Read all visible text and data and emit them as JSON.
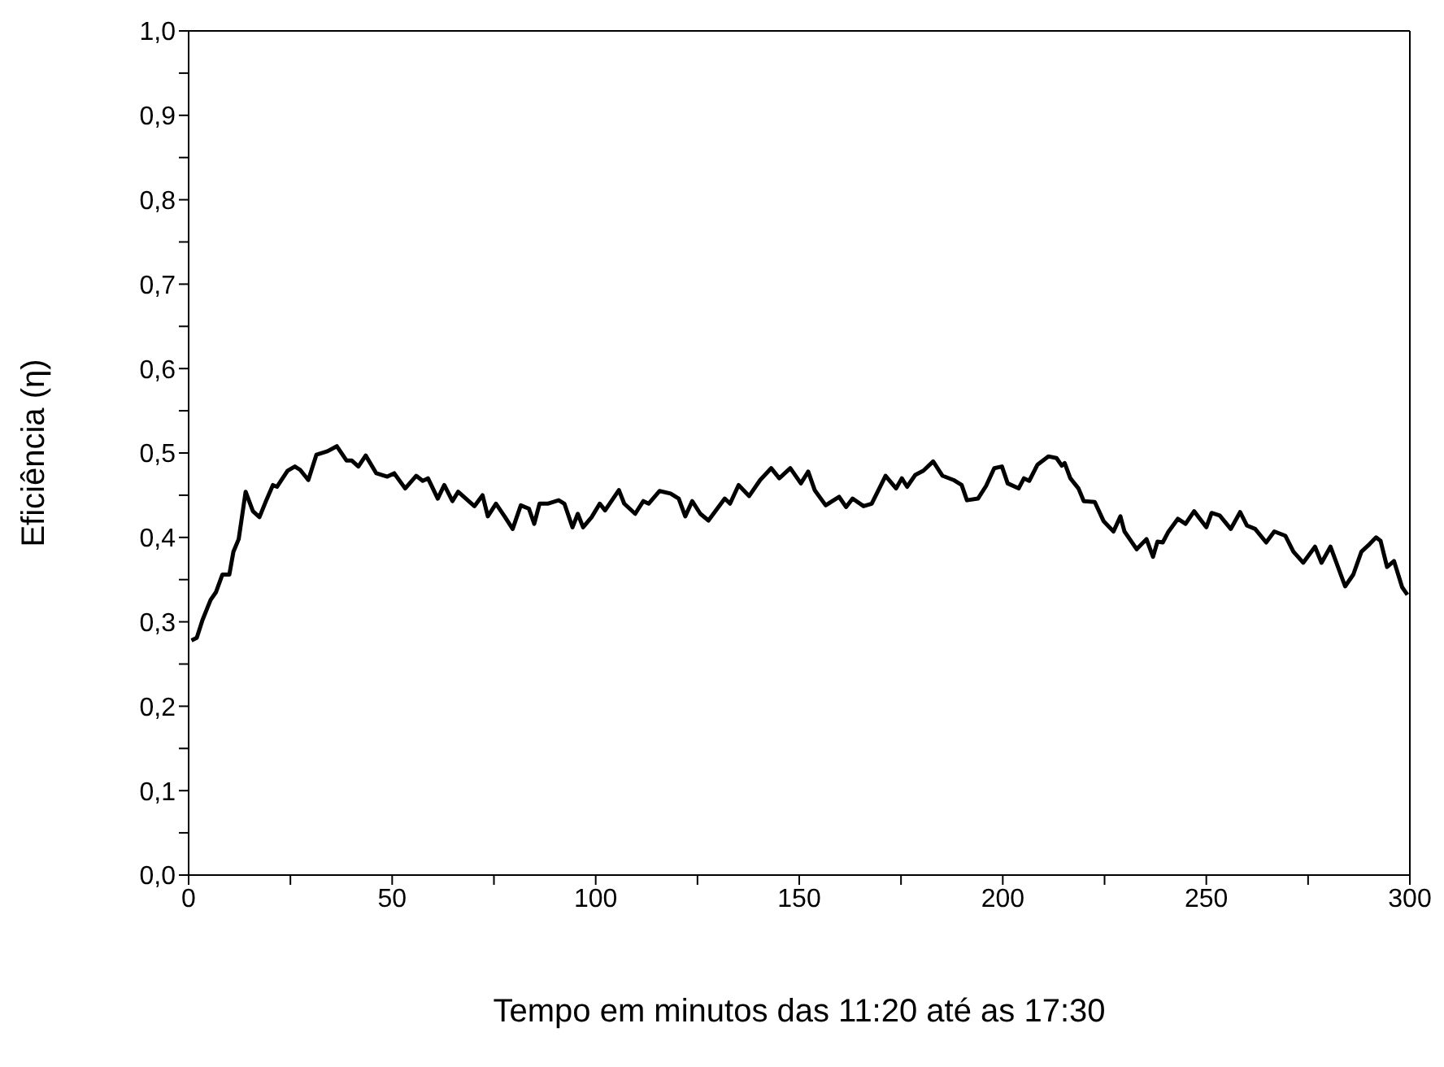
{
  "chart_data": {
    "type": "line",
    "xlabel": "Tempo em minutos das 11:20 até as 17:30",
    "ylabel": "Eficiência (η)",
    "x": [
      0.7,
      2,
      3.4,
      5.4,
      6.7,
      8.3,
      10,
      11,
      12.3,
      14,
      15.8,
      17.4,
      19,
      20.7,
      21.7,
      24.3,
      26.1,
      27.4,
      29.4,
      31.4,
      34.1,
      36.4,
      38.8,
      40.1,
      41.7,
      43.5,
      46.1,
      48.8,
      50.5,
      53.2,
      55.9,
      57.5,
      58.8,
      61.2,
      62.8,
      64.8,
      66.2,
      70.2,
      72.2,
      73.5,
      75.5,
      77.6,
      79.6,
      81.6,
      83.6,
      84.9,
      86.2,
      88.2,
      90.9,
      92.3,
      94.3,
      95.6,
      96.9,
      99,
      101,
      102.3,
      105.7,
      107,
      109.7,
      111.7,
      113,
      115.7,
      118.4,
      120.4,
      122,
      123.7,
      125.7,
      127.7,
      131.7,
      133,
      135.1,
      137.7,
      140.4,
      143.1,
      145.1,
      147.8,
      150.4,
      152.2,
      153.8,
      156.5,
      159.8,
      161.5,
      163.1,
      165.8,
      167.8,
      171.2,
      173.8,
      175.2,
      176.5,
      178.5,
      180.5,
      182.9,
      185.2,
      187.9,
      189.9,
      191.2,
      193.9,
      195.9,
      197.9,
      199.8,
      201.2,
      203.9,
      205.2,
      206.5,
      208.5,
      211.2,
      213.2,
      214.5,
      215.2,
      216.6,
      218.6,
      219.9,
      222.6,
      224.8,
      227.2,
      228.9,
      229.9,
      232.9,
      235.3,
      236.9,
      238,
      239.3,
      240.6,
      243,
      244.9,
      247,
      250,
      251.3,
      253.3,
      256,
      258.3,
      260,
      262,
      264.7,
      266.7,
      269.4,
      271.4,
      273.8,
      276.7,
      278.3,
      280.5,
      284.1,
      286.1,
      288.1,
      290.1,
      291.7,
      292.8,
      294.4,
      296.1,
      298.1,
      299.4
    ],
    "series": [
      {
        "color": "#000000",
        "values": [
          0.278,
          0.281,
          0.302,
          0.326,
          0.335,
          0.356,
          0.356,
          0.383,
          0.398,
          0.454,
          0.431,
          0.424,
          0.443,
          0.462,
          0.46,
          0.479,
          0.484,
          0.48,
          0.468,
          0.498,
          0.502,
          0.508,
          0.491,
          0.491,
          0.484,
          0.497,
          0.476,
          0.472,
          0.476,
          0.458,
          0.473,
          0.467,
          0.47,
          0.446,
          0.462,
          0.443,
          0.454,
          0.437,
          0.45,
          0.425,
          0.44,
          0.425,
          0.41,
          0.438,
          0.434,
          0.416,
          0.44,
          0.44,
          0.444,
          0.44,
          0.412,
          0.428,
          0.412,
          0.424,
          0.44,
          0.432,
          0.456,
          0.44,
          0.428,
          0.443,
          0.44,
          0.455,
          0.452,
          0.446,
          0.425,
          0.443,
          0.428,
          0.42,
          0.446,
          0.44,
          0.462,
          0.449,
          0.468,
          0.482,
          0.47,
          0.482,
          0.464,
          0.478,
          0.456,
          0.438,
          0.448,
          0.436,
          0.446,
          0.437,
          0.44,
          0.473,
          0.458,
          0.47,
          0.46,
          0.474,
          0.479,
          0.49,
          0.473,
          0.468,
          0.462,
          0.444,
          0.446,
          0.461,
          0.482,
          0.484,
          0.464,
          0.458,
          0.47,
          0.467,
          0.486,
          0.496,
          0.494,
          0.485,
          0.488,
          0.47,
          0.458,
          0.443,
          0.442,
          0.419,
          0.407,
          0.425,
          0.407,
          0.386,
          0.398,
          0.377,
          0.395,
          0.394,
          0.406,
          0.422,
          0.416,
          0.431,
          0.412,
          0.429,
          0.426,
          0.41,
          0.43,
          0.414,
          0.41,
          0.394,
          0.407,
          0.402,
          0.383,
          0.37,
          0.389,
          0.37,
          0.389,
          0.342,
          0.356,
          0.383,
          0.392,
          0.4,
          0.396,
          0.365,
          0.372,
          0.341,
          0.332
        ]
      }
    ],
    "xlim": [
      0,
      300
    ],
    "xticks": [
      0,
      {
        "value": 25,
        "label": null
      },
      50,
      {
        "value": 75,
        "label": null
      },
      100,
      {
        "value": 125,
        "label": null
      },
      150,
      {
        "value": 175,
        "label": null
      },
      200,
      {
        "value": 225,
        "label": null
      },
      250,
      {
        "value": 275,
        "label": null
      },
      300
    ],
    "ylim": [
      0,
      1
    ],
    "yticks": [
      {
        "value": 0,
        "label": "0,0"
      },
      {
        "value": 0.05,
        "label": null
      },
      {
        "value": 0.1,
        "label": "0,1"
      },
      {
        "value": 0.15,
        "label": null
      },
      {
        "value": 0.2,
        "label": "0,2"
      },
      {
        "value": 0.25,
        "label": null
      },
      {
        "value": 0.3,
        "label": "0,3"
      },
      {
        "value": 0.35,
        "label": null
      },
      {
        "value": 0.4,
        "label": "0,4"
      },
      {
        "value": 0.45,
        "label": null
      },
      {
        "value": 0.5,
        "label": "0,5"
      },
      {
        "value": 0.55,
        "label": null
      },
      {
        "value": 0.6,
        "label": "0,6"
      },
      {
        "value": 0.65,
        "label": null
      },
      {
        "value": 0.7,
        "label": "0,7"
      },
      {
        "value": 0.75,
        "label": null
      },
      {
        "value": 0.8,
        "label": "0,8"
      },
      {
        "value": 0.85,
        "label": null
      },
      {
        "value": 0.9,
        "label": "0,9"
      },
      {
        "value": 0.95,
        "label": null
      },
      {
        "value": 1,
        "label": "1,0"
      }
    ],
    "grid": false,
    "legend": false,
    "marker": "none",
    "line_style": "solid"
  }
}
